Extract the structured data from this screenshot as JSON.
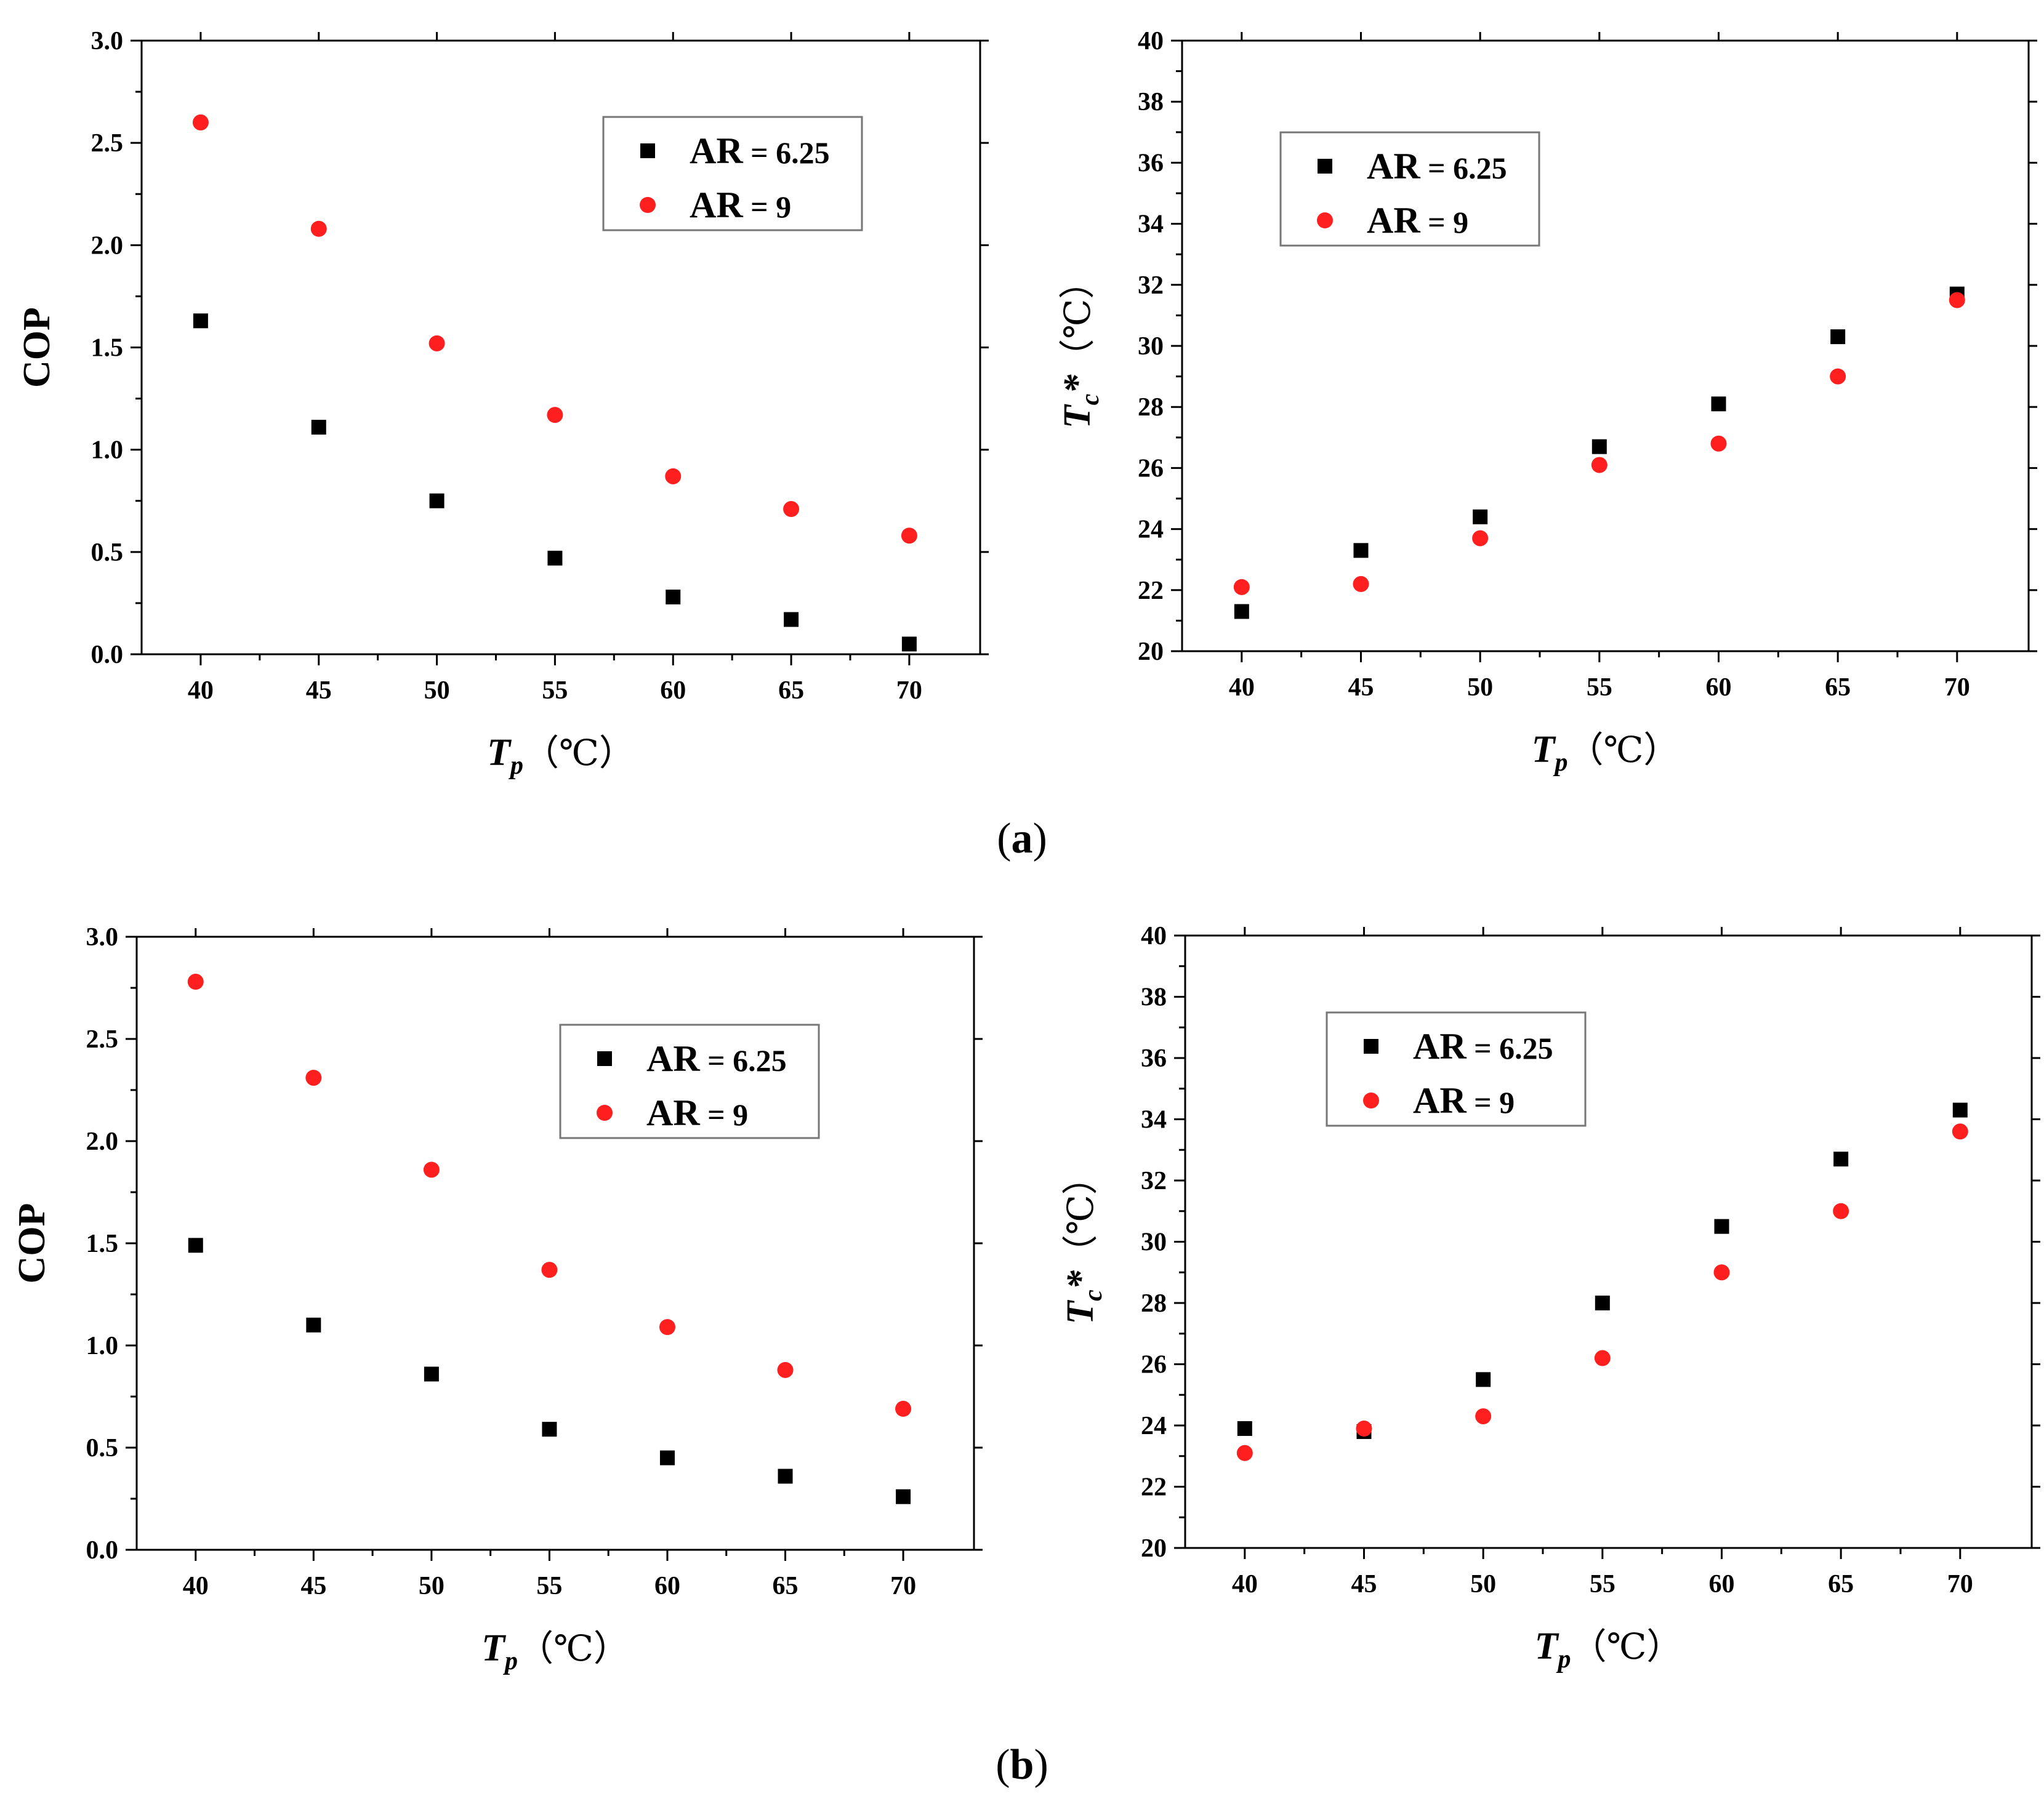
{
  "subfigure_captions": [
    {
      "open": "(",
      "letter": "a",
      "close": ")"
    },
    {
      "open": "(",
      "letter": "b",
      "close": ")"
    }
  ],
  "chart_data": [
    {
      "type": "scatter",
      "panel": "a-left",
      "title": "",
      "xlabel_main": "T",
      "xlabel_sub": "p",
      "xlabel_unit": "（℃）",
      "ylabel": "COP",
      "xlim": [
        37.5,
        73
      ],
      "ylim": [
        0,
        3.0
      ],
      "xticks": [
        40,
        45,
        50,
        55,
        60,
        65,
        70
      ],
      "yticks": [
        0.0,
        0.5,
        1.0,
        1.5,
        2.0,
        2.5,
        3.0
      ],
      "ytick_labels": [
        "0.0",
        "0.5",
        "1.0",
        "1.5",
        "2.0",
        "2.5",
        "3.0"
      ],
      "legend": "top-right",
      "x": [
        40,
        45,
        50,
        55,
        60,
        65,
        70
      ],
      "series": [
        {
          "name_main": "AR",
          "name_rest": " = 6.25",
          "marker": "square",
          "color": "#000000",
          "values": [
            1.63,
            1.11,
            0.75,
            0.47,
            0.28,
            0.17,
            0.05
          ]
        },
        {
          "name_main": "AR",
          "name_rest": " = 9",
          "marker": "circle",
          "color": "#ff1f1f",
          "values": [
            2.6,
            2.08,
            1.52,
            1.17,
            0.87,
            0.71,
            0.58
          ]
        }
      ]
    },
    {
      "type": "scatter",
      "panel": "a-right",
      "title": "",
      "xlabel_main": "T",
      "xlabel_sub": "p",
      "xlabel_unit": "（℃）",
      "ylabel_main": "T",
      "ylabel_sub": "c",
      "ylabel_star": "*",
      "ylabel_unit": "（℃）",
      "xlim": [
        37.5,
        73
      ],
      "ylim": [
        20,
        40
      ],
      "xticks": [
        40,
        45,
        50,
        55,
        60,
        65,
        70
      ],
      "yticks": [
        20,
        22,
        24,
        26,
        28,
        30,
        32,
        34,
        36,
        38,
        40
      ],
      "ytick_labels": [
        "20",
        "22",
        "24",
        "26",
        "28",
        "30",
        "32",
        "34",
        "36",
        "38",
        "40"
      ],
      "legend": "top-left",
      "x": [
        40,
        45,
        50,
        55,
        60,
        65,
        70
      ],
      "series": [
        {
          "name_main": "AR",
          "name_rest": " = 6.25",
          "marker": "square",
          "color": "#000000",
          "values": [
            21.3,
            23.3,
            24.4,
            26.7,
            28.1,
            30.3,
            31.7
          ]
        },
        {
          "name_main": "AR",
          "name_rest": " = 9",
          "marker": "circle",
          "color": "#ff1f1f",
          "values": [
            22.1,
            22.2,
            23.7,
            26.1,
            26.8,
            29.0,
            31.5
          ]
        }
      ]
    },
    {
      "type": "scatter",
      "panel": "b-left",
      "title": "",
      "xlabel_main": "T",
      "xlabel_sub": "p",
      "xlabel_unit": "（℃）",
      "ylabel": "COP",
      "xlim": [
        37.5,
        73
      ],
      "ylim": [
        0,
        3.0
      ],
      "xticks": [
        40,
        45,
        50,
        55,
        60,
        65,
        70
      ],
      "yticks": [
        0.0,
        0.5,
        1.0,
        1.5,
        2.0,
        2.5,
        3.0
      ],
      "ytick_labels": [
        "0.0",
        "0.5",
        "1.0",
        "1.5",
        "2.0",
        "2.5",
        "3.0"
      ],
      "legend": "upper-right",
      "x": [
        40,
        45,
        50,
        55,
        60,
        65,
        70
      ],
      "series": [
        {
          "name_main": "AR",
          "name_rest": " = 6.25",
          "marker": "square",
          "color": "#000000",
          "values": [
            1.49,
            1.1,
            0.86,
            0.59,
            0.45,
            0.36,
            0.26
          ]
        },
        {
          "name_main": "AR",
          "name_rest": " = 9",
          "marker": "circle",
          "color": "#ff1f1f",
          "values": [
            2.78,
            2.31,
            1.86,
            1.37,
            1.09,
            0.88,
            0.69
          ]
        }
      ]
    },
    {
      "type": "scatter",
      "panel": "b-right",
      "title": "",
      "xlabel_main": "T",
      "xlabel_sub": "p",
      "xlabel_unit": "（℃）",
      "ylabel_main": "T",
      "ylabel_sub": "c",
      "ylabel_star": "*",
      "ylabel_unit": "（℃）",
      "xlim": [
        37.5,
        73
      ],
      "ylim": [
        20,
        40
      ],
      "xticks": [
        40,
        45,
        50,
        55,
        60,
        65,
        70
      ],
      "yticks": [
        20,
        22,
        24,
        26,
        28,
        30,
        32,
        34,
        36,
        38,
        40
      ],
      "ytick_labels": [
        "20",
        "22",
        "24",
        "26",
        "28",
        "30",
        "32",
        "34",
        "36",
        "38",
        "40"
      ],
      "legend": "top-left",
      "x": [
        40,
        45,
        50,
        55,
        60,
        65,
        70
      ],
      "series": [
        {
          "name_main": "AR",
          "name_rest": " = 6.25",
          "marker": "square",
          "color": "#000000",
          "values": [
            23.9,
            23.8,
            25.5,
            28.0,
            30.5,
            32.7,
            34.3
          ]
        },
        {
          "name_main": "AR",
          "name_rest": " = 9",
          "marker": "circle",
          "color": "#ff1f1f",
          "values": [
            23.1,
            23.9,
            24.3,
            26.2,
            29.0,
            31.0,
            33.6
          ]
        }
      ]
    }
  ]
}
